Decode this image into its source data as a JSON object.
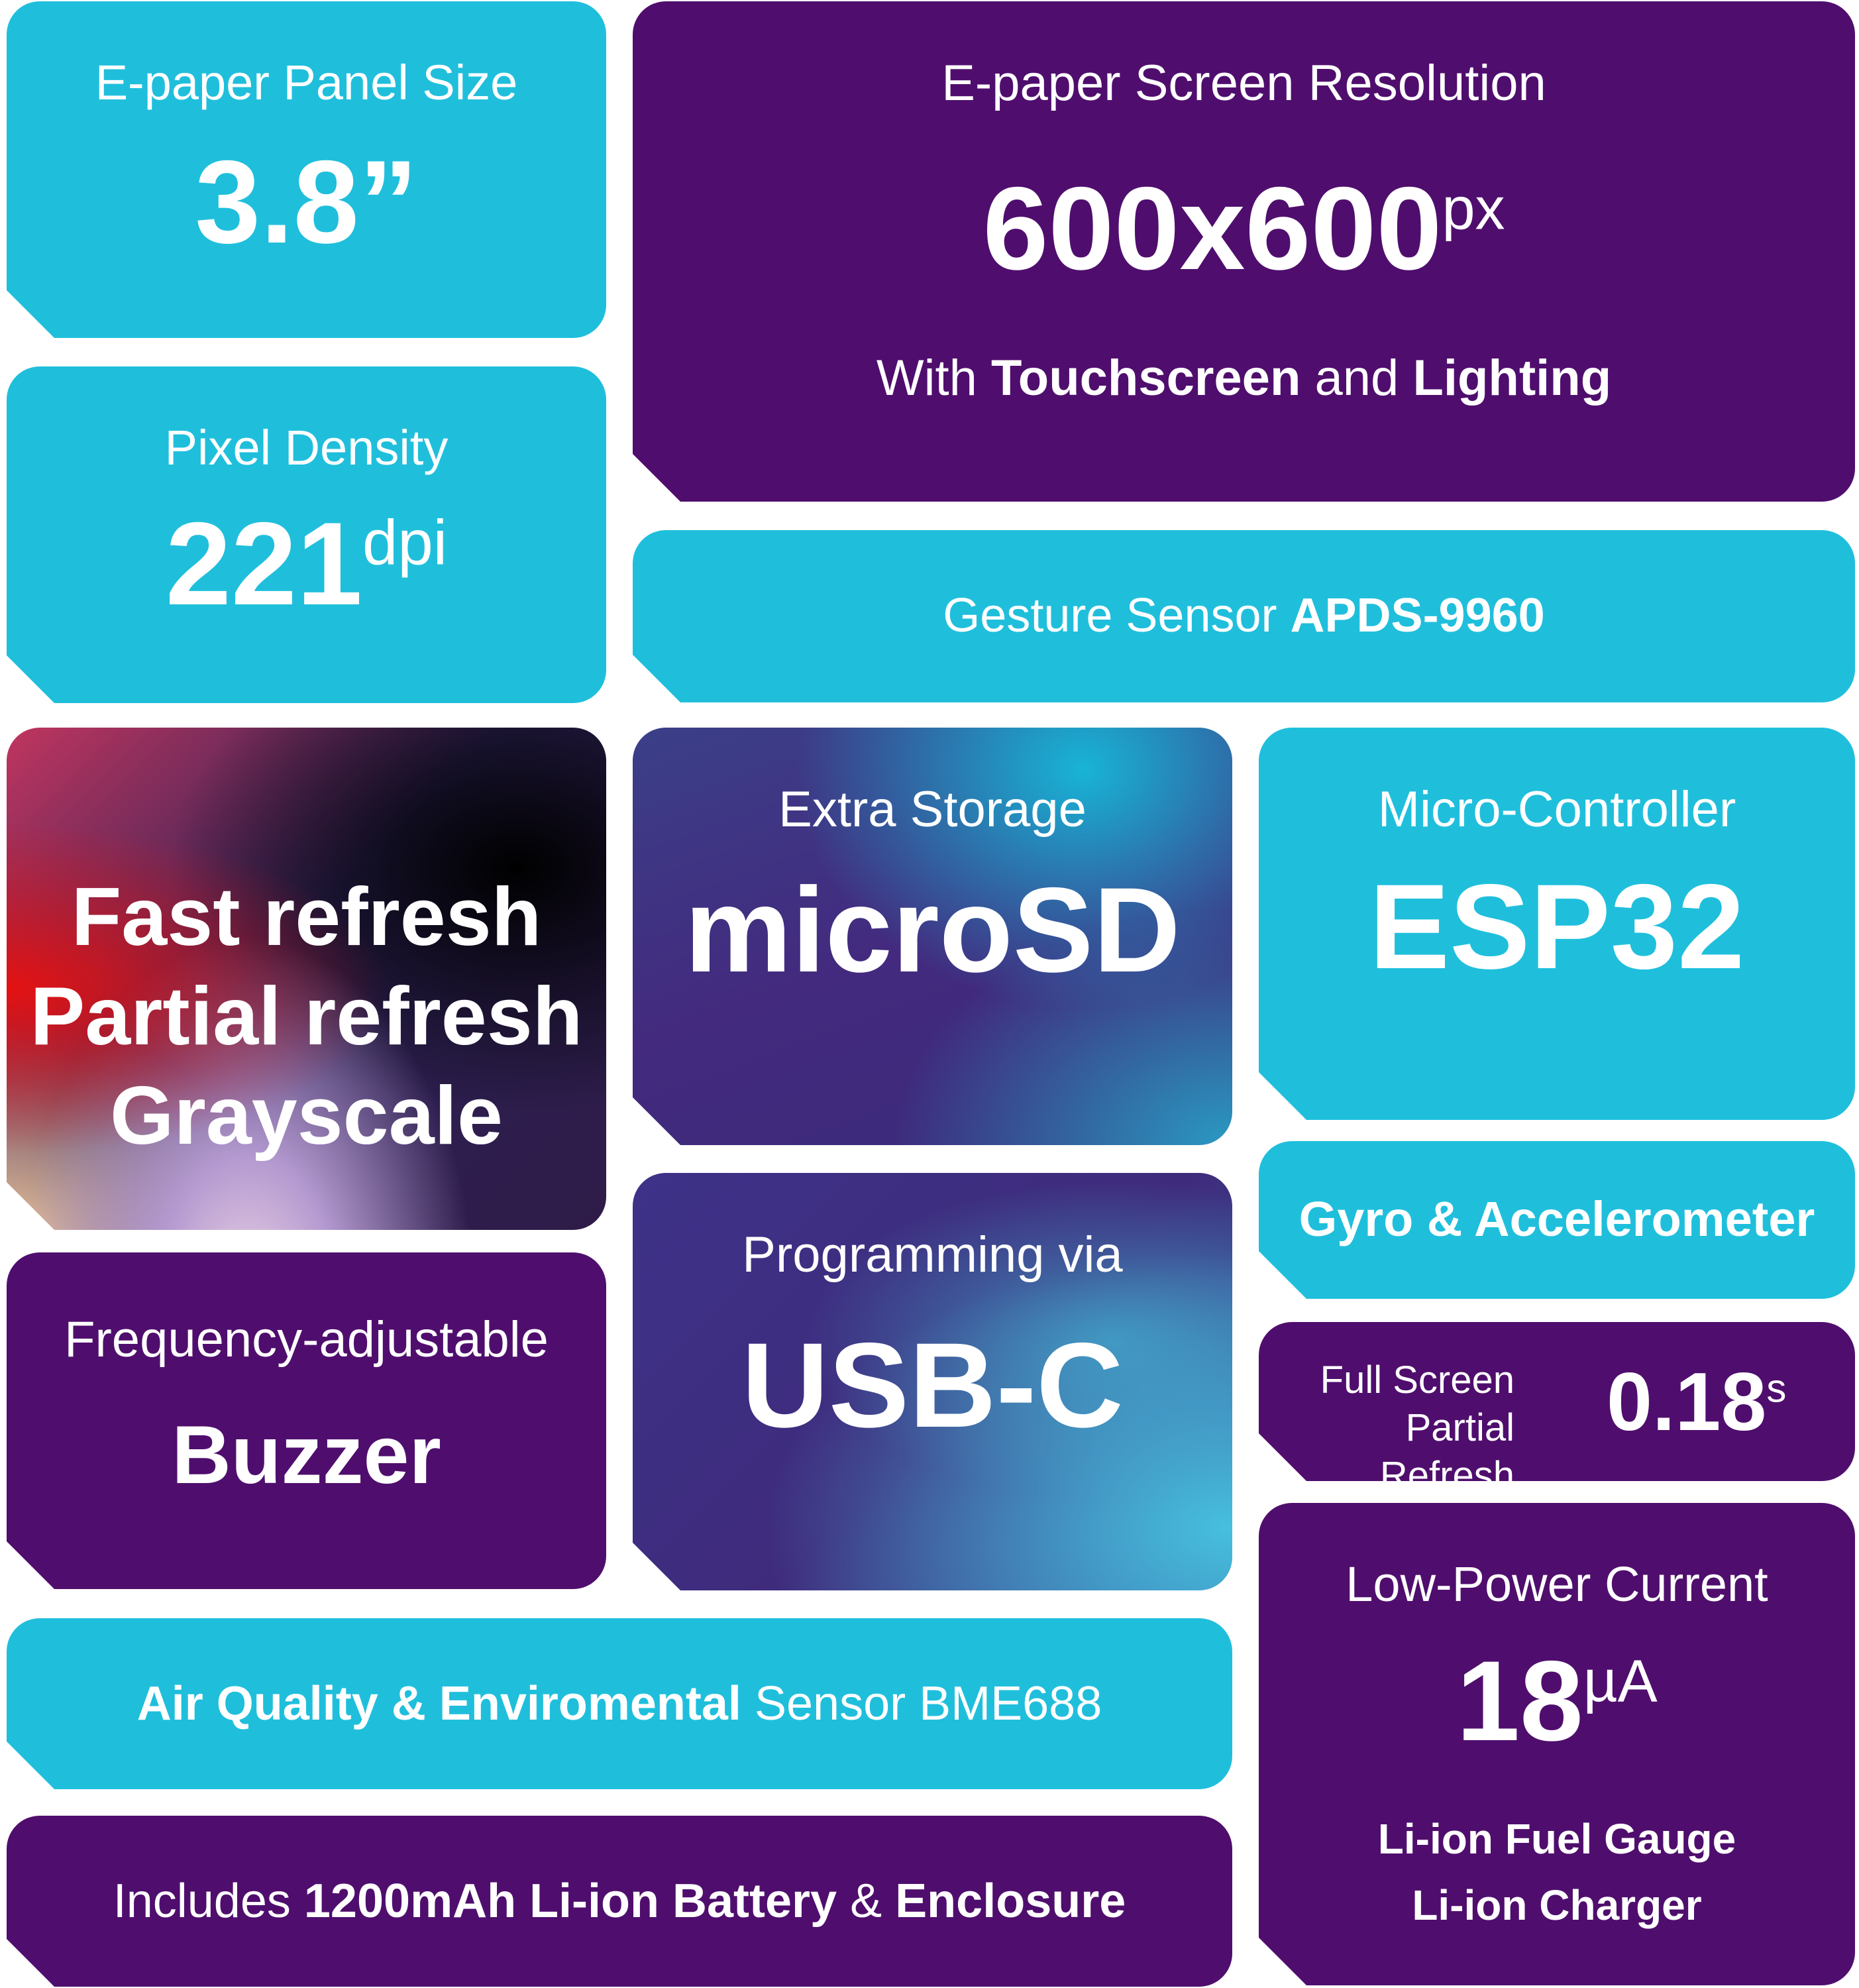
{
  "panel": {
    "label": "E-paper Panel Size",
    "value": "3.8”"
  },
  "resolution": {
    "label": "E-paper Screen Resolution",
    "value": "600x600",
    "unit": "px",
    "with": "With",
    "feature1": "Touchscreen",
    "and": "and",
    "feature2": "Lighting"
  },
  "density": {
    "label": "Pixel Density",
    "value": "221",
    "unit": "dpi"
  },
  "gesture": {
    "label": "Gesture Sensor",
    "value": "APDS-9960"
  },
  "refresh_features": [
    "Fast refresh",
    "Partial refresh",
    "Grayscale"
  ],
  "storage": {
    "label": "Extra Storage",
    "value": "microSD"
  },
  "mcu": {
    "label": "Micro-Controller",
    "value": "ESP32"
  },
  "gyro": {
    "label": "Gyro & Accelerometer"
  },
  "buzzer": {
    "label": "Frequency-adjustable",
    "value": "Buzzer"
  },
  "usb": {
    "label": "Programming via",
    "value": "USB-C"
  },
  "refresh_time": {
    "line1": "Full Screen",
    "line2": "Partial Refresh",
    "value": "0.18",
    "unit": "s"
  },
  "power": {
    "label": "Low-Power Current",
    "value": "18",
    "unit": "µA",
    "feature1": "Li-ion Fuel Gauge",
    "feature2": "Li-ion Charger"
  },
  "air": {
    "bold": "Air Quality & Enviromental",
    "rest": "Sensor BME688"
  },
  "battery": {
    "includes": "Includes",
    "item1": "1200mAh Li-ion Battery",
    "amp": "&",
    "item2": "Enclosure"
  },
  "colors": {
    "cyan": "#1fbfdc",
    "purple": "#4f0e6d"
  }
}
